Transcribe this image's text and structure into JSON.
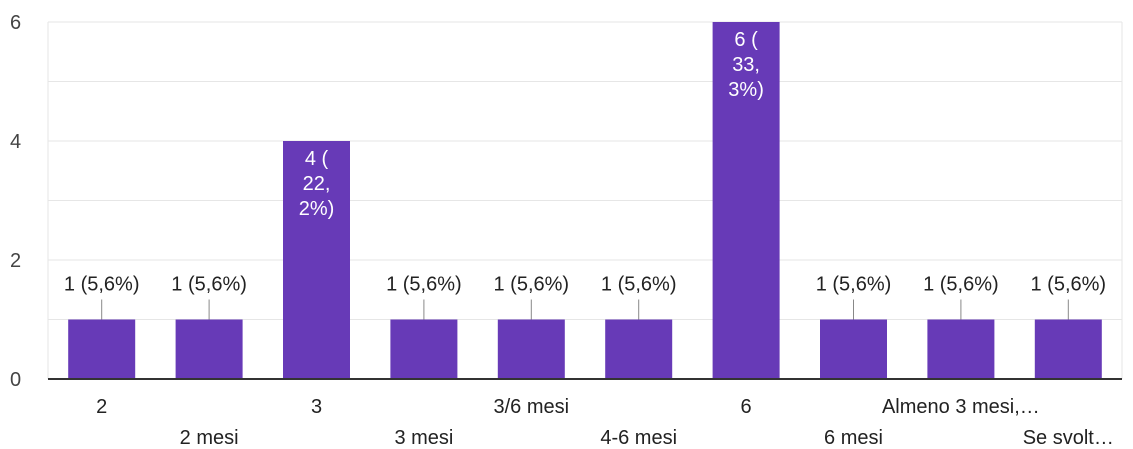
{
  "chart_data": {
    "type": "bar",
    "categories": [
      "2",
      "2 mesi",
      "3",
      "3 mesi",
      "3/6 mesi",
      "4-6 mesi",
      "6",
      "6 mesi",
      "Almeno 3 mesi,…",
      "Se svolt…"
    ],
    "values": [
      1,
      1,
      4,
      1,
      1,
      1,
      6,
      1,
      1,
      1
    ],
    "data_labels": [
      [
        "1 (5,6%)"
      ],
      [
        "1 (5,6%)"
      ],
      [
        "4 (",
        "22,",
        "2%)"
      ],
      [
        "1 (5,6%)"
      ],
      [
        "1 (5,6%)"
      ],
      [
        "1 (5,6%)"
      ],
      [
        "6 (",
        "33,",
        "3%)"
      ],
      [
        "1 (5,6%)"
      ],
      [
        "1 (5,6%)"
      ],
      [
        "1 (5,6%)"
      ]
    ],
    "y_ticks": [
      "0",
      "2",
      "4",
      "6"
    ],
    "ylim": [
      0,
      6
    ],
    "grid": true,
    "bar_color": "#673ab7",
    "grid_color": "#e6e6e6",
    "axis_color": "#333333"
  }
}
